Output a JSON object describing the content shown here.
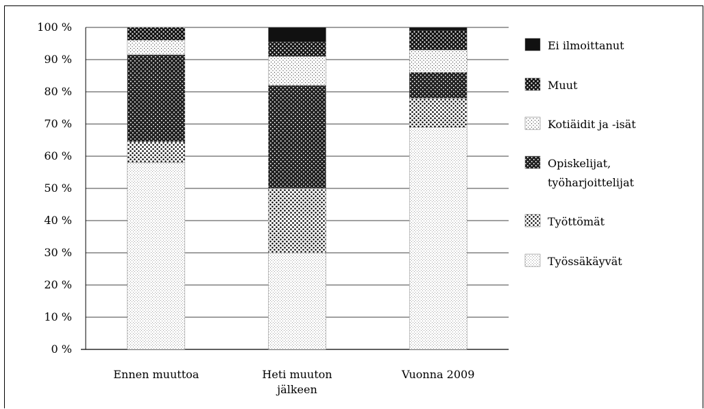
{
  "chart_data": {
    "type": "bar",
    "stacked": true,
    "percent": true,
    "categories": [
      [
        "Ennen muuttoa"
      ],
      [
        "Heti muuton",
        "jälkeen"
      ],
      [
        "Vuonna 2009"
      ]
    ],
    "ylim": [
      0,
      100
    ],
    "y_ticks": [
      "0 %",
      "10 %",
      "20 %",
      "30 %",
      "40 %",
      "50 %",
      "60 %",
      "70 %",
      "80 %",
      "90 %",
      "100 %"
    ],
    "grid": "horizontal",
    "legend_position": "right",
    "series": [
      {
        "name": [
          "Työssäkäyvät"
        ],
        "pattern": "fine-dots-light",
        "values": [
          58,
          30,
          69
        ]
      },
      {
        "name": [
          "Työttömät"
        ],
        "pattern": "polka-dots",
        "values": [
          6.5,
          20,
          9
        ]
      },
      {
        "name": [
          "Opiskelijat,",
          "työharjoittelijat"
        ],
        "pattern": "dense-checker",
        "values": [
          27,
          32,
          8
        ]
      },
      {
        "name": [
          "Kotiäidit ja -isät"
        ],
        "pattern": "sparse-dots",
        "values": [
          4.5,
          9,
          7
        ]
      },
      {
        "name": [
          "Muut"
        ],
        "pattern": "coarse-checker",
        "values": [
          4,
          4.5,
          6
        ]
      },
      {
        "name": [
          "Ei ilmoittanut"
        ],
        "pattern": "solid-black",
        "values": [
          0,
          4.5,
          1
        ]
      }
    ]
  }
}
